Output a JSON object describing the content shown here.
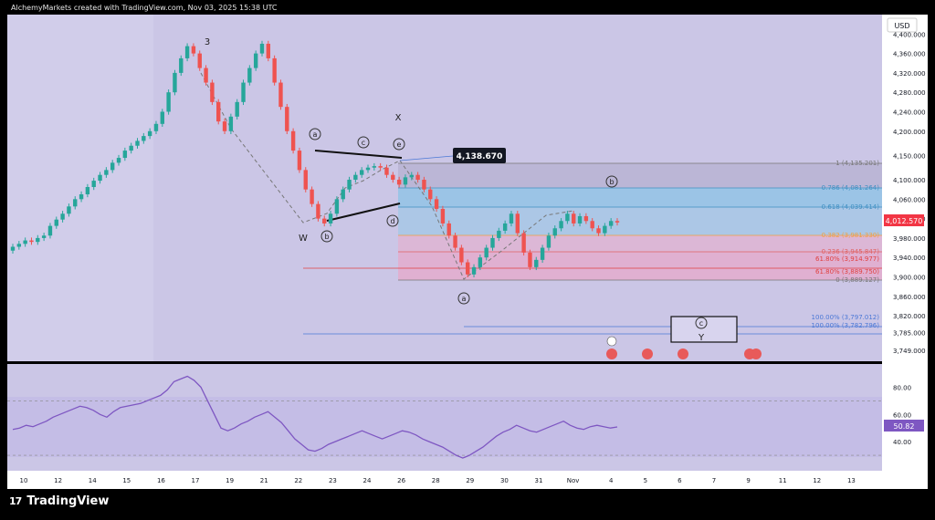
{
  "header": {
    "attribution": "AlchemyMarkets created with TradingView.com, Nov 03, 2025 15:38 UTC"
  },
  "footer": {
    "brand": "TradingView",
    "brand_mark": "17"
  },
  "currency_badge": "USD",
  "price_axis": {
    "labels": [
      "4,400.000",
      "4,360.000",
      "4,320.000",
      "4,280.000",
      "4,240.000",
      "4,200.000",
      "4,150.000",
      "4,100.000",
      "4,060.000",
      "4,020.000",
      "3,980.000",
      "3,940.000",
      "3,900.000",
      "3,860.000",
      "3,820.000",
      "3,785.000",
      "3,749.000"
    ],
    "current_price": "4,012.570",
    "current_price_color": "#f23645"
  },
  "rsi_axis": {
    "labels": [
      "80.00",
      "60.00",
      "40.00"
    ],
    "current_value": "50.82"
  },
  "time_axis": {
    "labels": [
      "10",
      "12",
      "14",
      "15",
      "16",
      "17",
      "19",
      "21",
      "22",
      "23",
      "24",
      "26",
      "28",
      "29",
      "30",
      "31",
      "Nov",
      "4",
      "5",
      "6",
      "7",
      "9",
      "11",
      "12",
      "13"
    ]
  },
  "annotations": {
    "wave_3": "3",
    "wave_w": "W",
    "wave_x": "X",
    "wave_y": "Y",
    "circled": [
      "a",
      "b",
      "c",
      "d",
      "e",
      "b",
      "a",
      "c"
    ],
    "callout_price": "4,138.670"
  },
  "fib_labels": {
    "f1": "1 (4,135.201)",
    "f0786": "0.786 (4,081.264)",
    "f0618": "0.618 (4,039.414)",
    "f0382": "0.382 (3,981.330)",
    "f0236": "0.236 (3,945.847)",
    "f618a": "61.80% (3,914.977)",
    "f618b": "61.80% (3,889.750)",
    "f0": "0 (3,889.127)",
    "f100a": "100.00% (3,797.012)",
    "f100b": "100.00% (3,782.796)"
  },
  "colors": {
    "bull": "#26a69a",
    "bear": "#ef5350",
    "rsi_line": "#7e57c2",
    "panel_bg": "#cbc6e6",
    "fib_blue": "#8fc3e6",
    "fib_pink": "#e8a6c8"
  },
  "chart_data": {
    "type": "candlestick",
    "title": "",
    "instrument_currency": "USD",
    "ylim": [
      3730,
      4425
    ],
    "candles_close_approx": [
      3962,
      3968,
      3975,
      3972,
      3980,
      3985,
      4005,
      4018,
      4030,
      4045,
      4060,
      4070,
      4085,
      4098,
      4110,
      4120,
      4135,
      4145,
      4160,
      4170,
      4180,
      4190,
      4200,
      4215,
      4240,
      4280,
      4320,
      4350,
      4375,
      4360,
      4330,
      4300,
      4260,
      4220,
      4200,
      4230,
      4260,
      4300,
      4330,
      4360,
      4380,
      4350,
      4300,
      4250,
      4200,
      4160,
      4120,
      4080,
      4050,
      4020,
      4010,
      4030,
      4060,
      4080,
      4100,
      4110,
      4120,
      4125,
      4128,
      4125,
      4110,
      4100,
      4090,
      4105,
      4110,
      4100,
      4080,
      4060,
      4040,
      4010,
      3985,
      3960,
      3930,
      3905,
      3920,
      3940,
      3960,
      3980,
      3995,
      4010,
      4030,
      3990,
      3950,
      3920,
      3935,
      3960,
      3985,
      4000,
      4015,
      4030,
      4010,
      4025,
      4015,
      4000,
      3990,
      4005,
      4015,
      4012
    ],
    "levels": [
      4135.201,
      4081.264,
      4039.414,
      3981.33,
      3945.847,
      3914.977,
      3889.75,
      3889.127,
      3797.012,
      3782.796
    ],
    "callout": 4138.67,
    "current_price": 4012.57,
    "rsi": {
      "ylim": [
        20,
        95
      ],
      "levels": [
        70,
        30
      ],
      "current": 50.82,
      "values": [
        49,
        50,
        52,
        51,
        53,
        55,
        58,
        60,
        62,
        64,
        66,
        65,
        63,
        60,
        58,
        62,
        65,
        66,
        67,
        68,
        70,
        72,
        74,
        78,
        84,
        86,
        88,
        85,
        80,
        70,
        60,
        50,
        48,
        50,
        53,
        55,
        58,
        60,
        62,
        58,
        54,
        48,
        42,
        38,
        34,
        33,
        35,
        38,
        40,
        42,
        44,
        46,
        48,
        46,
        44,
        42,
        44,
        46,
        48,
        47,
        45,
        42,
        40,
        38,
        36,
        33,
        30,
        28,
        30,
        33,
        36,
        40,
        44,
        47,
        49,
        52,
        50,
        48,
        47,
        49,
        51,
        53,
        55,
        52,
        50,
        49,
        51,
        52,
        51,
        50,
        50.82
      ]
    }
  }
}
